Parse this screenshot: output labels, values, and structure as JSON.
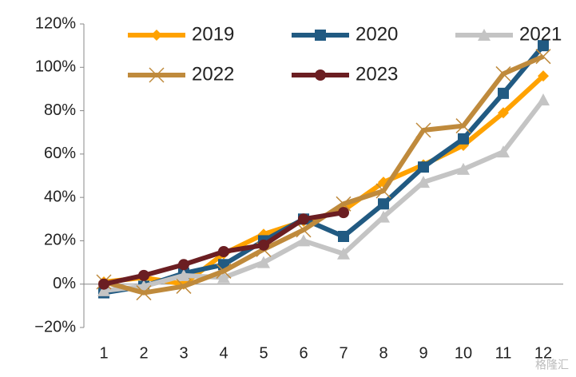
{
  "chart_data": {
    "type": "line",
    "categories": [
      "1",
      "2",
      "3",
      "4",
      "5",
      "6",
      "7",
      "8",
      "9",
      "10",
      "11",
      "12"
    ],
    "series": [
      {
        "name": "2019",
        "color": "#ffa200",
        "marker": "diamond",
        "values": [
          1,
          3,
          0,
          14,
          23,
          29,
          34,
          47,
          55,
          64,
          79,
          96
        ]
      },
      {
        "name": "2020",
        "color": "#215a82",
        "marker": "square",
        "values": [
          -4,
          -1,
          5,
          9,
          20,
          30,
          22,
          37,
          54,
          67,
          88,
          110
        ]
      },
      {
        "name": "2021",
        "color": "#c4c4c4",
        "marker": "triangle",
        "values": [
          -3,
          -1,
          4,
          3,
          10,
          20,
          14,
          31,
          47,
          53,
          61,
          85
        ]
      },
      {
        "name": "2022",
        "color": "#bf8a3c",
        "marker": "cross",
        "values": [
          1,
          -4,
          -1,
          6,
          16,
          25,
          37,
          43,
          71,
          73,
          97,
          105
        ]
      },
      {
        "name": "2023",
        "color": "#6b1e22",
        "marker": "circle",
        "values": [
          0,
          4,
          9,
          15,
          18,
          30,
          33,
          null,
          null,
          null,
          null,
          null
        ]
      }
    ],
    "ylim": [
      -20,
      120
    ],
    "yticks": [
      {
        "value": -20,
        "label": "−20%"
      },
      {
        "value": 0,
        "label": "0%"
      },
      {
        "value": 20,
        "label": "20%"
      },
      {
        "value": 40,
        "label": "40%"
      },
      {
        "value": 60,
        "label": "60%"
      },
      {
        "value": 80,
        "label": "80%"
      },
      {
        "value": 100,
        "label": "100%"
      },
      {
        "value": 120,
        "label": "120%"
      }
    ],
    "legend": "top-left",
    "watermark": "格隆汇"
  }
}
